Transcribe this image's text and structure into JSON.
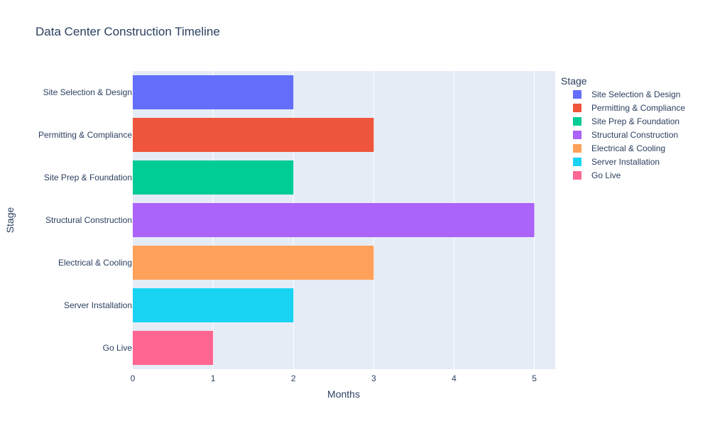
{
  "chart_data": {
    "type": "bar",
    "orientation": "horizontal",
    "title": "Data Center Construction Timeline",
    "xlabel": "Months",
    "ylabel": "Stage",
    "xlim": [
      0,
      5.26
    ],
    "x_ticks": [
      0,
      1,
      2,
      3,
      4,
      5
    ],
    "grid": true,
    "legend_title": "Stage",
    "legend_position": "top-right",
    "categories": [
      "Site Selection & Design",
      "Permitting & Compliance",
      "Site Prep & Foundation",
      "Structural Construction",
      "Electrical & Cooling",
      "Server Installation",
      "Go Live"
    ],
    "values": [
      2,
      3,
      2,
      5,
      3,
      2,
      1
    ],
    "colors": [
      "#636efa",
      "#EF553B",
      "#00cc96",
      "#ab63fa",
      "#FFA15A",
      "#19d3f3",
      "#FF6692"
    ],
    "plot_background": "#e5ecf6"
  }
}
